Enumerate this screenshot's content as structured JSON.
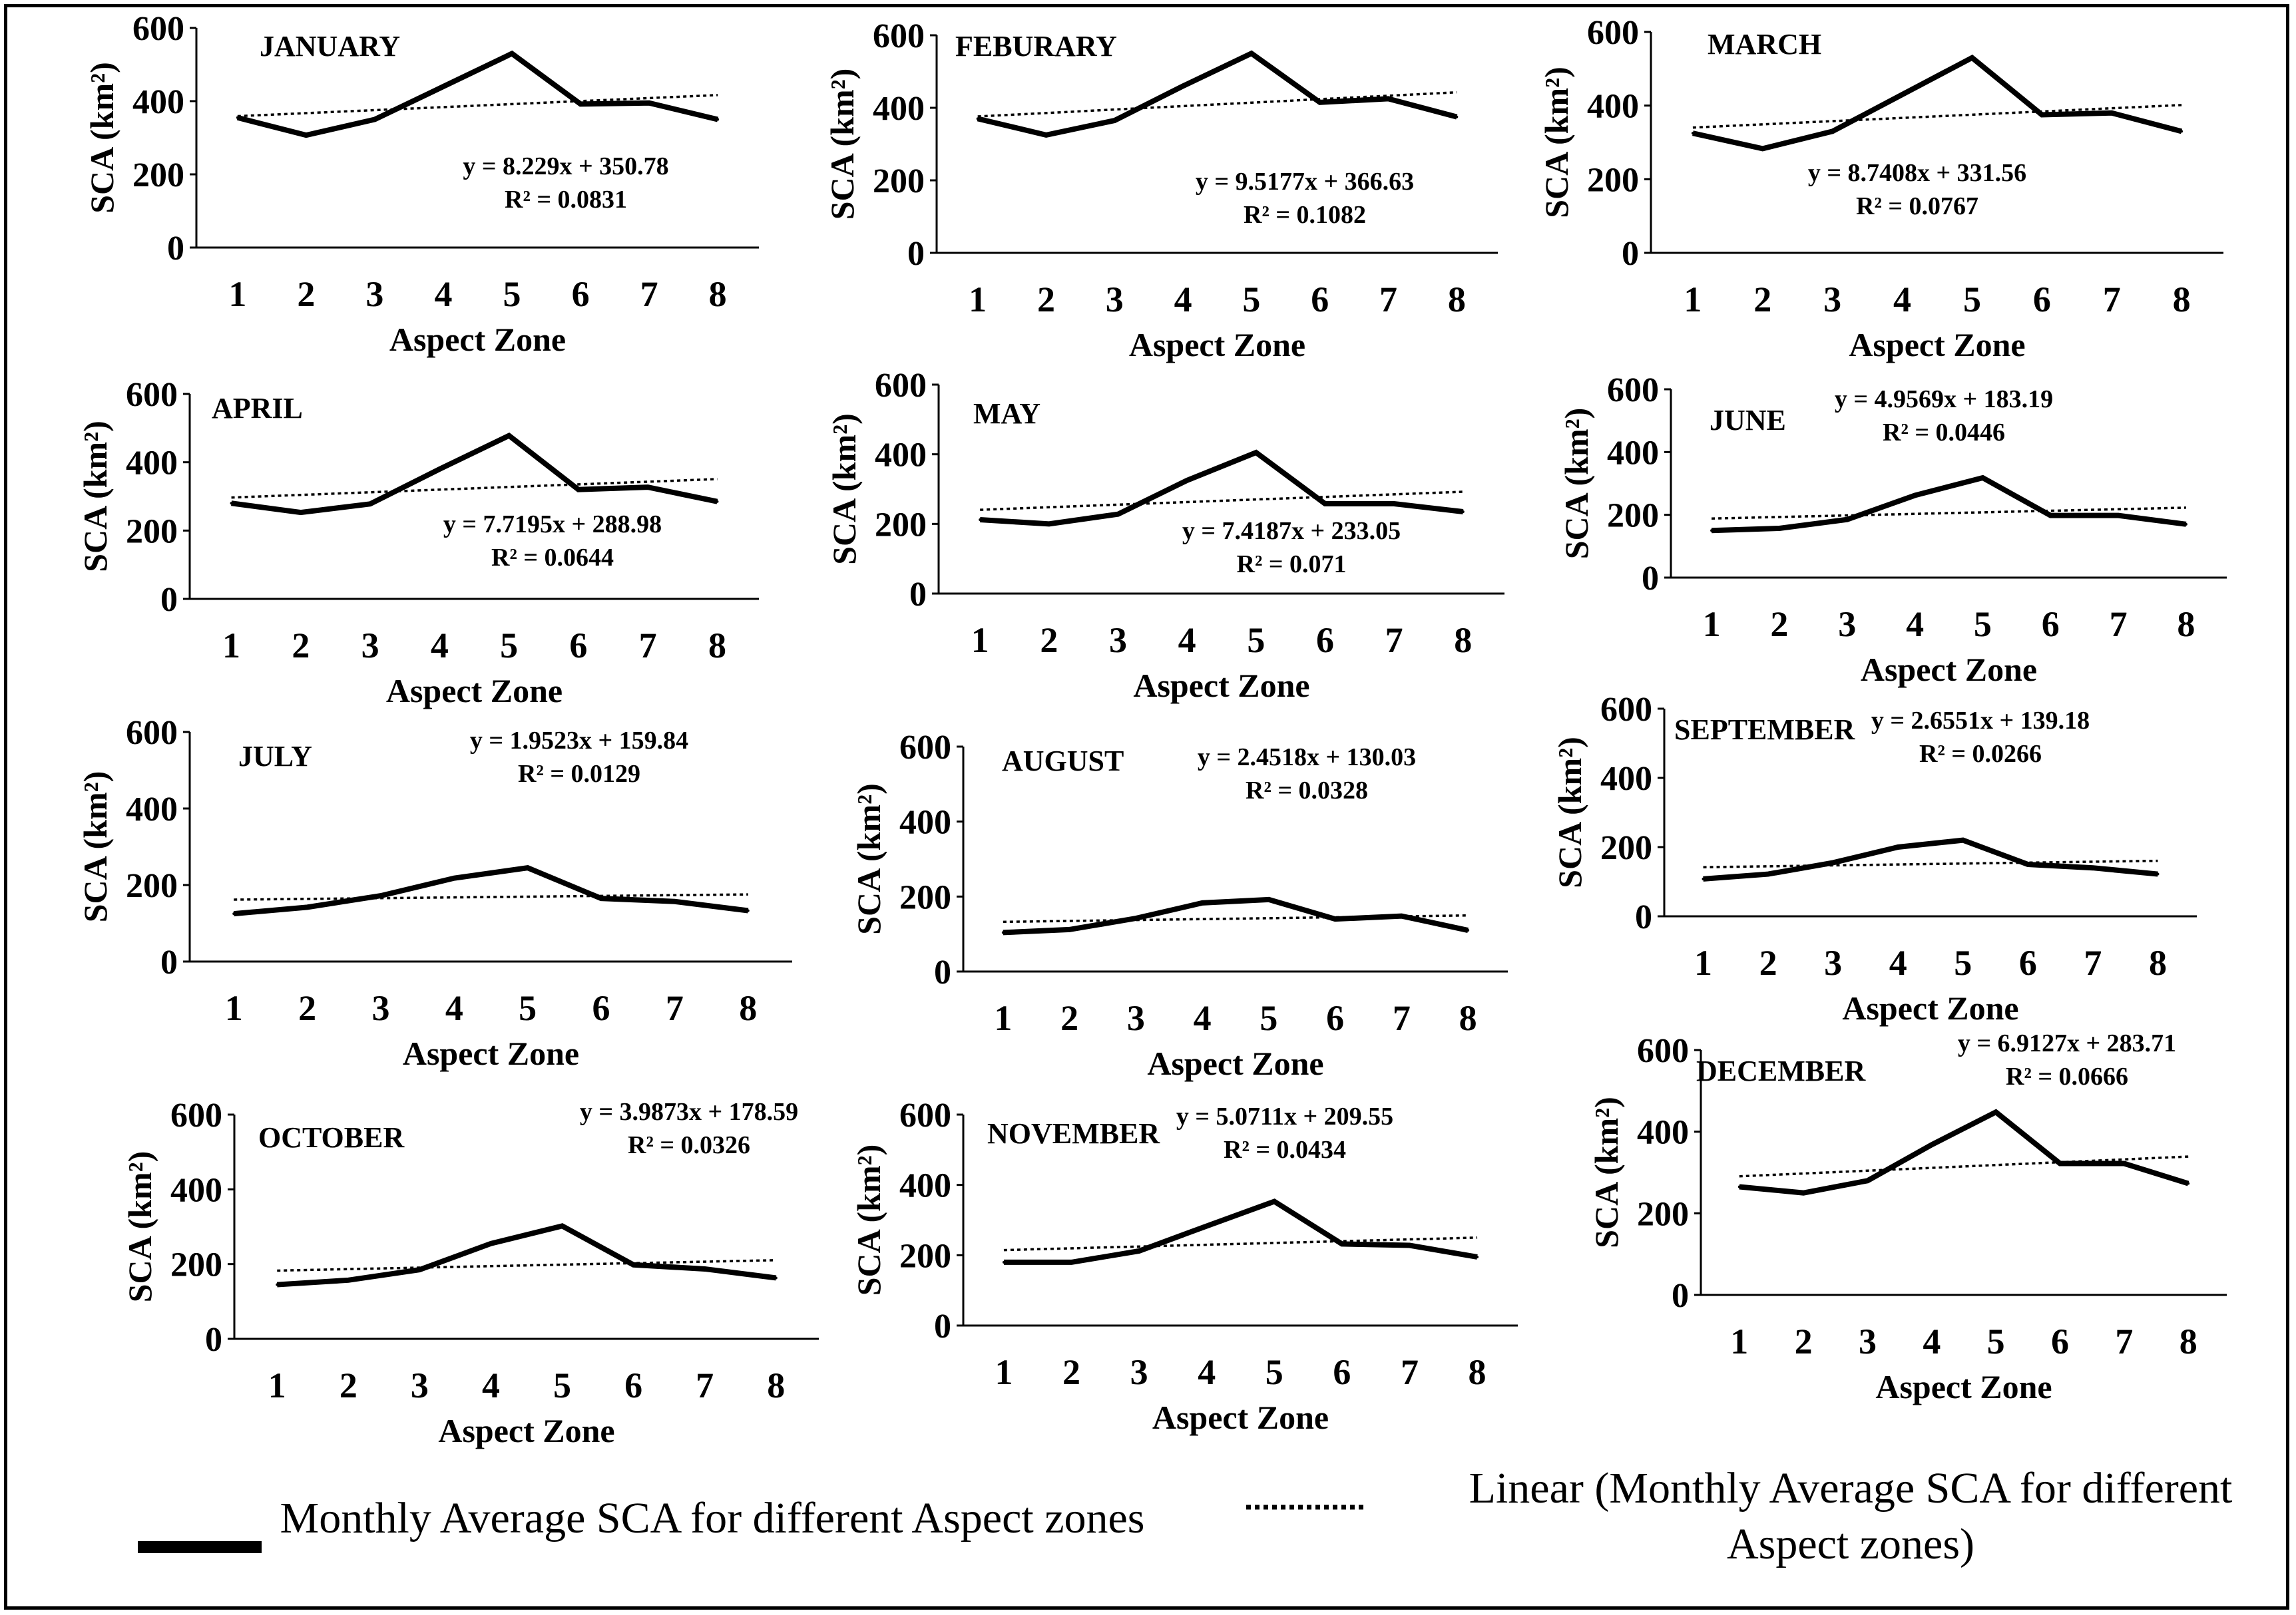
{
  "figure": {
    "xlabel": "Aspect Zone",
    "ylabel": "SCA (km²)"
  },
  "legend": {
    "series_label": "Monthly Average SCA for different Aspect zones",
    "trend_label": "Linear (Monthly Average SCA for different Aspect zones)"
  },
  "chart_data": [
    {
      "type": "line",
      "title": "JANUARY",
      "xlabel": "Aspect Zone",
      "ylabel": "SCA (km²)",
      "ylim": [
        0,
        600
      ],
      "yticks": [
        0,
        200,
        400,
        600
      ],
      "x": [
        1,
        2,
        3,
        4,
        5,
        6,
        7,
        8
      ],
      "series": [
        {
          "name": "Monthly Average SCA for different Aspect zones",
          "values": [
            355,
            307,
            350,
            440,
            530,
            392,
            395,
            350
          ]
        }
      ],
      "trendline": {
        "slope": 8.229,
        "intercept": 350.78,
        "equation": "y = 8.229x + 350.78",
        "r2_label": "R² = 0.0831"
      }
    },
    {
      "type": "line",
      "title": "FEBURARY",
      "xlabel": "Aspect Zone",
      "ylabel": "SCA (km²)",
      "ylim": [
        0,
        600
      ],
      "yticks": [
        0,
        200,
        400,
        600
      ],
      "x": [
        1,
        2,
        3,
        4,
        5,
        6,
        7,
        8
      ],
      "series": [
        {
          "name": "Monthly Average SCA for different Aspect zones",
          "values": [
            370,
            325,
            365,
            460,
            550,
            415,
            425,
            375
          ]
        }
      ],
      "trendline": {
        "slope": 9.5177,
        "intercept": 366.63,
        "equation": "y = 9.5177x + 366.63",
        "r2_label": "R² = 0.1082"
      }
    },
    {
      "type": "line",
      "title": "MARCH",
      "xlabel": "Aspect Zone",
      "ylabel": "SCA (km²)",
      "ylim": [
        0,
        600
      ],
      "yticks": [
        0,
        200,
        400,
        600
      ],
      "x": [
        1,
        2,
        3,
        4,
        5,
        6,
        7,
        8
      ],
      "series": [
        {
          "name": "Monthly Average SCA for different Aspect zones",
          "values": [
            325,
            283,
            330,
            430,
            530,
            375,
            380,
            330
          ]
        }
      ],
      "trendline": {
        "slope": 8.7408,
        "intercept": 331.56,
        "equation": "y = 8.7408x + 331.56",
        "r2_label": "R² = 0.0767"
      }
    },
    {
      "type": "line",
      "title": "APRIL",
      "xlabel": "Aspect Zone",
      "ylabel": "SCA (km²)",
      "ylim": [
        0,
        600
      ],
      "yticks": [
        0,
        200,
        400,
        600
      ],
      "x": [
        1,
        2,
        3,
        4,
        5,
        6,
        7,
        8
      ],
      "series": [
        {
          "name": "Monthly Average SCA for different Aspect zones",
          "values": [
            280,
            253,
            278,
            380,
            478,
            320,
            327,
            285
          ]
        }
      ],
      "trendline": {
        "slope": 7.7195,
        "intercept": 288.98,
        "equation": "y = 7.7195x + 288.98",
        "r2_label": "R² = 0.0644"
      }
    },
    {
      "type": "line",
      "title": "MAY",
      "xlabel": "Aspect Zone",
      "ylabel": "SCA (km²)",
      "ylim": [
        0,
        600
      ],
      "yticks": [
        0,
        200,
        400,
        600
      ],
      "x": [
        1,
        2,
        3,
        4,
        5,
        6,
        7,
        8
      ],
      "series": [
        {
          "name": "Monthly Average SCA for different Aspect zones",
          "values": [
            212,
            200,
            228,
            325,
            405,
            258,
            258,
            235
          ]
        }
      ],
      "trendline": {
        "slope": 7.4187,
        "intercept": 233.05,
        "equation": "y = 7.4187x + 233.05",
        "r2_label": "R² = 0.071"
      }
    },
    {
      "type": "line",
      "title": "JUNE",
      "xlabel": "Aspect Zone",
      "ylabel": "SCA (km²)",
      "ylim": [
        0,
        600
      ],
      "yticks": [
        0,
        200,
        400,
        600
      ],
      "x": [
        1,
        2,
        3,
        4,
        5,
        6,
        7,
        8
      ],
      "series": [
        {
          "name": "Monthly Average SCA for different Aspect zones",
          "values": [
            150,
            157,
            185,
            262,
            318,
            198,
            198,
            170
          ]
        }
      ],
      "trendline": {
        "slope": 4.9569,
        "intercept": 183.19,
        "equation": "y = 4.9569x + 183.19",
        "r2_label": "R² = 0.0446"
      }
    },
    {
      "type": "line",
      "title": "JULY",
      "xlabel": "Aspect Zone",
      "ylabel": "SCA (km²)",
      "ylim": [
        0,
        600
      ],
      "yticks": [
        0,
        200,
        400,
        600
      ],
      "x": [
        1,
        2,
        3,
        4,
        5,
        6,
        7,
        8
      ],
      "series": [
        {
          "name": "Monthly Average SCA for different Aspect zones",
          "values": [
            125,
            142,
            172,
            218,
            245,
            165,
            157,
            133
          ]
        }
      ],
      "trendline": {
        "slope": 1.9523,
        "intercept": 159.84,
        "equation": "y = 1.9523x + 159.84",
        "r2_label": "R² = 0.0129"
      }
    },
    {
      "type": "line",
      "title": "AUGUST",
      "xlabel": "Aspect Zone",
      "ylabel": "SCA (km²)",
      "ylim": [
        0,
        600
      ],
      "yticks": [
        0,
        200,
        400,
        600
      ],
      "x": [
        1,
        2,
        3,
        4,
        5,
        6,
        7,
        8
      ],
      "series": [
        {
          "name": "Monthly Average SCA for different Aspect zones",
          "values": [
            104,
            112,
            142,
            183,
            192,
            140,
            148,
            110
          ]
        }
      ],
      "trendline": {
        "slope": 2.4518,
        "intercept": 130.03,
        "equation": "y = 2.4518x + 130.03",
        "r2_label": "R² = 0.0328"
      }
    },
    {
      "type": "line",
      "title": "SEPTEMBER",
      "xlabel": "Aspect Zone",
      "ylabel": "SCA (km²)",
      "ylim": [
        0,
        600
      ],
      "yticks": [
        0,
        200,
        400,
        600
      ],
      "x": [
        1,
        2,
        3,
        4,
        5,
        6,
        7,
        8
      ],
      "series": [
        {
          "name": "Monthly Average SCA for different Aspect zones",
          "values": [
            108,
            122,
            155,
            200,
            220,
            150,
            140,
            122
          ]
        }
      ],
      "trendline": {
        "slope": 2.6551,
        "intercept": 139.18,
        "equation": "y = 2.6551x + 139.18",
        "r2_label": "R² = 0.0266"
      }
    },
    {
      "type": "line",
      "title": "OCTOBER",
      "xlabel": "Aspect Zone",
      "ylabel": "SCA (km²)",
      "ylim": [
        0,
        600
      ],
      "yticks": [
        0,
        200,
        400,
        600
      ],
      "x": [
        1,
        2,
        3,
        4,
        5,
        6,
        7,
        8
      ],
      "series": [
        {
          "name": "Monthly Average SCA for different Aspect zones",
          "values": [
            145,
            157,
            185,
            255,
            302,
            198,
            187,
            163
          ]
        }
      ],
      "trendline": {
        "slope": 3.9873,
        "intercept": 178.59,
        "equation": "y = 3.9873x + 178.59",
        "r2_label": "R² = 0.0326"
      }
    },
    {
      "type": "line",
      "title": "NOVEMBER",
      "xlabel": "Aspect Zone",
      "ylabel": "SCA (km²)",
      "ylim": [
        0,
        600
      ],
      "yticks": [
        0,
        200,
        400,
        600
      ],
      "x": [
        1,
        2,
        3,
        4,
        5,
        6,
        7,
        8
      ],
      "series": [
        {
          "name": "Monthly Average SCA for different Aspect zones",
          "values": [
            180,
            180,
            212,
            283,
            353,
            232,
            228,
            195
          ]
        }
      ],
      "trendline": {
        "slope": 5.0711,
        "intercept": 209.55,
        "equation": "y = 5.0711x + 209.55",
        "r2_label": "R² = 0.0434"
      }
    },
    {
      "type": "line",
      "title": "DECEMBER",
      "xlabel": "Aspect Zone",
      "ylabel": "SCA (km²)",
      "ylim": [
        0,
        600
      ],
      "yticks": [
        0,
        200,
        400,
        600
      ],
      "x": [
        1,
        2,
        3,
        4,
        5,
        6,
        7,
        8
      ],
      "series": [
        {
          "name": "Monthly Average SCA for different Aspect zones",
          "values": [
            265,
            250,
            280,
            368,
            448,
            322,
            322,
            273
          ]
        }
      ],
      "trendline": {
        "slope": 6.9127,
        "intercept": 283.71,
        "equation": "y = 6.9127x + 283.71",
        "r2_label": "R² = 0.0666"
      }
    }
  ]
}
